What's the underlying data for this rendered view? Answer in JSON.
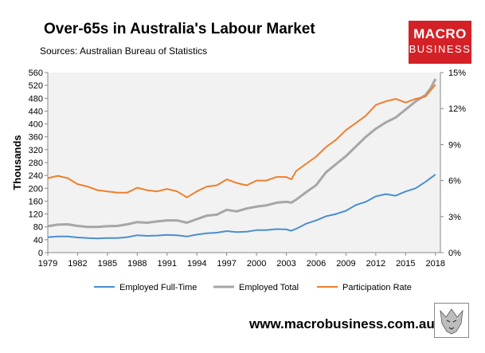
{
  "header": {
    "title": "Over-65s in Australia's Labour Market",
    "subtitle": "Sources: Australian Bureau of Statistics"
  },
  "logo": {
    "line1": "MACRO",
    "line2": "BUSINESS"
  },
  "footer": {
    "url": "www.macrobusiness.com.au"
  },
  "colors": {
    "full_time": "#4a8fd0",
    "total": "#a6a6a6",
    "participation": "#ef7f2c",
    "logo_bg": "#d42127"
  },
  "chart_data": {
    "type": "line",
    "ylabel": "Thousands",
    "xlim": [
      1979,
      2018.5
    ],
    "ylim": [
      0,
      560
    ],
    "y2lim": [
      0,
      15
    ],
    "x_ticks": [
      "1979",
      "1982",
      "1985",
      "1988",
      "1991",
      "1994",
      "1997",
      "2000",
      "2003",
      "2006",
      "2009",
      "2012",
      "2015",
      "2018"
    ],
    "y_ticks": [
      "0",
      "40",
      "80",
      "120",
      "160",
      "200",
      "240",
      "280",
      "320",
      "360",
      "400",
      "440",
      "480",
      "520",
      "560"
    ],
    "y2_ticks": [
      "0%",
      "3%",
      "6%",
      "9%",
      "12%",
      "15%"
    ],
    "legend_position": "bottom",
    "series": [
      {
        "name": "Employed Full-Time",
        "axis": "left",
        "x": [
          1979,
          1980,
          1981,
          1982,
          1983,
          1984,
          1985,
          1986,
          1987,
          1988,
          1989,
          1990,
          1991,
          1992,
          1993,
          1994,
          1995,
          1996,
          1997,
          1998,
          1999,
          2000,
          2001,
          2002,
          2003,
          2003.5,
          2004,
          2005,
          2006,
          2007,
          2008,
          2009,
          2010,
          2011,
          2012,
          2013,
          2014,
          2015,
          2016,
          2017,
          2018
        ],
        "values": [
          48,
          50,
          50,
          47,
          45,
          44,
          45,
          45,
          48,
          54,
          52,
          53,
          55,
          54,
          50,
          56,
          60,
          62,
          67,
          64,
          65,
          70,
          70,
          73,
          72,
          68,
          74,
          90,
          100,
          113,
          120,
          130,
          148,
          158,
          175,
          182,
          177,
          190,
          200,
          220,
          243
        ]
      },
      {
        "name": "Employed Total",
        "axis": "left",
        "x": [
          1979,
          1980,
          1981,
          1982,
          1983,
          1984,
          1985,
          1986,
          1987,
          1988,
          1989,
          1990,
          1991,
          1992,
          1993,
          1994,
          1995,
          1996,
          1997,
          1998,
          1999,
          2000,
          2001,
          2002,
          2003,
          2003.5,
          2004,
          2005,
          2006,
          2007,
          2008,
          2009,
          2010,
          2011,
          2012,
          2013,
          2014,
          2015,
          2016,
          2017,
          2017.5,
          2018
        ],
        "values": [
          82,
          87,
          88,
          83,
          80,
          80,
          82,
          83,
          88,
          95,
          93,
          97,
          100,
          100,
          93,
          104,
          115,
          118,
          133,
          128,
          137,
          143,
          147,
          155,
          158,
          155,
          165,
          188,
          210,
          250,
          275,
          300,
          330,
          360,
          385,
          405,
          420,
          445,
          470,
          490,
          510,
          540
        ]
      },
      {
        "name": "Participation Rate",
        "axis": "right",
        "x": [
          1979,
          1980,
          1981,
          1982,
          1983,
          1984,
          1985,
          1986,
          1987,
          1988,
          1989,
          1990,
          1991,
          1992,
          1993,
          1994,
          1995,
          1996,
          1997,
          1998,
          1999,
          2000,
          2001,
          2002,
          2003,
          2003.5,
          2004,
          2005,
          2006,
          2007,
          2008,
          2009,
          2010,
          2011,
          2012,
          2013,
          2014,
          2015,
          2016,
          2017,
          2018
        ],
        "values": [
          6.2,
          6.4,
          6.2,
          5.7,
          5.5,
          5.2,
          5.1,
          5.0,
          5.0,
          5.4,
          5.2,
          5.1,
          5.3,
          5.1,
          4.6,
          5.1,
          5.5,
          5.6,
          6.1,
          5.8,
          5.6,
          6.0,
          6.0,
          6.3,
          6.3,
          6.1,
          6.8,
          7.4,
          8.0,
          8.8,
          9.4,
          10.2,
          10.8,
          11.4,
          12.3,
          12.6,
          12.8,
          12.5,
          12.8,
          13.0,
          14.0
        ]
      }
    ]
  }
}
